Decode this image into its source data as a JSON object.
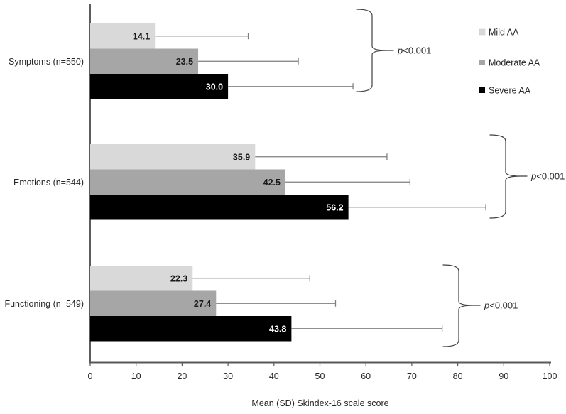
{
  "chart_data": {
    "type": "bar",
    "orientation": "horizontal",
    "title": "",
    "xlabel": "Mean (SD) Skindex-16 scale score",
    "ylabel": "",
    "xlim": [
      0,
      100
    ],
    "xticks": [
      0,
      10,
      20,
      30,
      40,
      50,
      60,
      70,
      80,
      90,
      100
    ],
    "grid": false,
    "legend_position": "top-right",
    "categories": [
      "Symptoms (n=550)",
      "Emotions (n=544)",
      "Functioning (n=549)"
    ],
    "series": [
      {
        "name": "Mild AA",
        "color": "#d9d9d9",
        "values": [
          14.1,
          35.9,
          22.3
        ],
        "sd": [
          20.3,
          28.7,
          25.5
        ]
      },
      {
        "name": "Moderate AA",
        "color": "#a6a6a6",
        "values": [
          23.5,
          42.5,
          27.4
        ],
        "sd": [
          21.8,
          27.1,
          26.0
        ]
      },
      {
        "name": "Severe AA",
        "color": "#000000",
        "values": [
          30.0,
          56.2,
          43.8
        ],
        "sd": [
          27.2,
          29.9,
          32.8
        ]
      }
    ],
    "group_annotations": [
      {
        "category": "Symptoms (n=550)",
        "label": "p<0.001"
      },
      {
        "category": "Emotions (n=544)",
        "label": "p<0.001"
      },
      {
        "category": "Functioning (n=549)",
        "label": "p<0.001"
      }
    ],
    "value_label_color_light_bars": "#1a1a1a",
    "value_label_color_dark_bars": "#ffffff",
    "error_bar_color": "#7f7f7f",
    "axis_color": "#595959",
    "text_color": "#262626"
  }
}
